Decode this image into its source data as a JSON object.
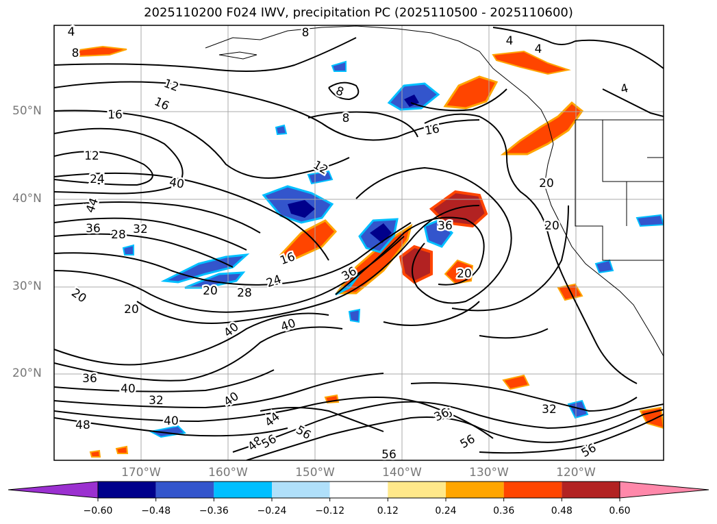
{
  "title": "2025110200 F024 IWV, precipitation PC (2025110500 - 2025110600)",
  "lat_labels": [
    "50°N",
    "40°N",
    "30°N",
    "20°N"
  ],
  "lon_labels": [
    "170°W",
    "160°W",
    "150°W",
    "140°W",
    "130°W",
    "120°W"
  ],
  "contour_labels": [
    "4",
    "8",
    "12",
    "16",
    "16",
    "12",
    "24",
    "40",
    "44",
    "36",
    "28",
    "32",
    "8",
    "8",
    "16",
    "12",
    "40",
    "36",
    "16",
    "24",
    "20",
    "28",
    "36",
    "20",
    "20",
    "40",
    "40",
    "36",
    "40",
    "32",
    "40",
    "48",
    "36",
    "44",
    "48",
    "56",
    "56",
    "56",
    "36",
    "56",
    "32",
    "56",
    "4",
    "4",
    "4",
    "8",
    "20",
    "20",
    "20"
  ],
  "colorbar": {
    "ticks": [
      "−0.60",
      "−0.48",
      "−0.36",
      "−0.24",
      "−0.12",
      "0.12",
      "0.24",
      "0.36",
      "0.48",
      "0.60"
    ],
    "colors": [
      "#9b30d0",
      "#00008b",
      "#3355cc",
      "#00bfff",
      "#b0e0fa",
      "#ffffff",
      "#ffe88a",
      "#ffa500",
      "#ff4500",
      "#b22222",
      "#ff88aa"
    ]
  }
}
